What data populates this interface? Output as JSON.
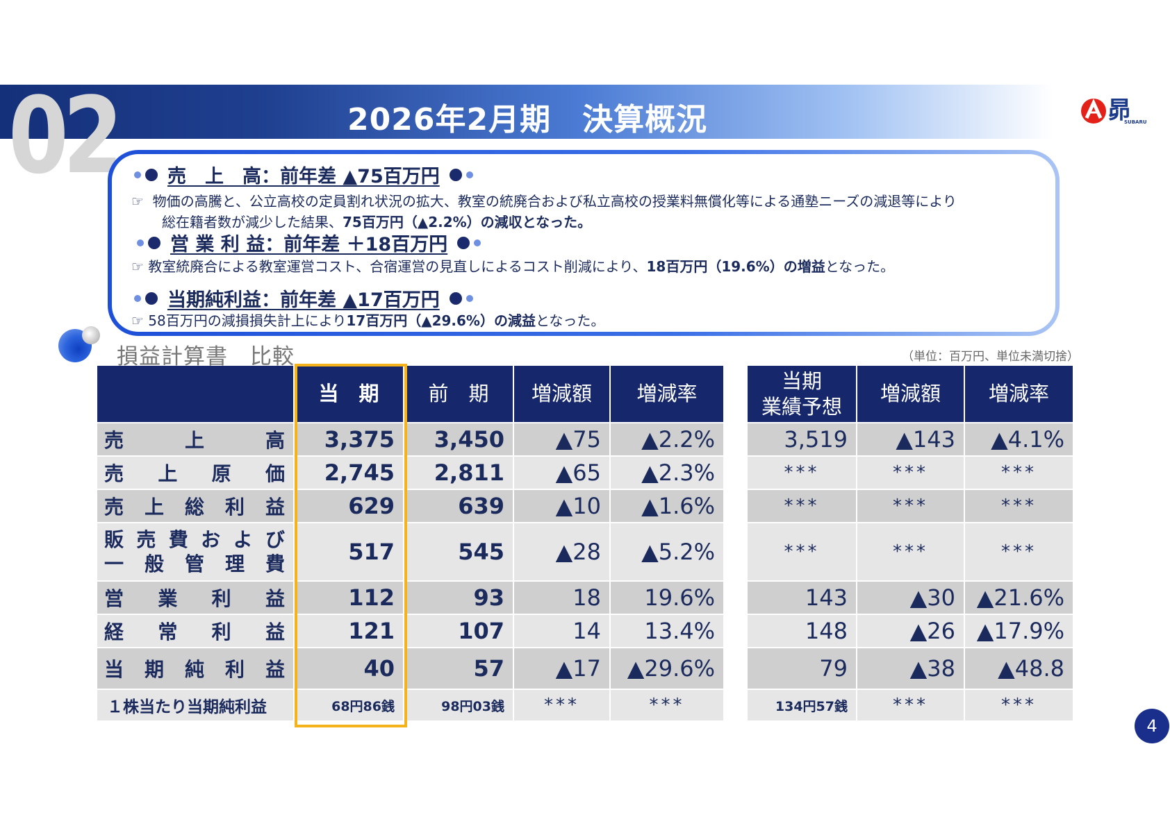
{
  "header": {
    "section_number": "02",
    "title": "2026年2月期　決算概況",
    "logo_text": "SUBARU"
  },
  "summary": {
    "sales": {
      "heading": "売　上　高：前年差 ▲75百万円",
      "line1": "物価の高騰と、公立高校の定員割れ状況の拡大、教室の統廃合および私立高校の授業料無償化等による通塾ニーズの減退等により",
      "line2_pre": "総在籍者数が減少した結果、",
      "line2_bold": "75百万円（▲2.2%）の減収となった。"
    },
    "operating": {
      "heading": "営 業 利 益：前年差 ＋18百万円",
      "line1_pre": "教室統廃合による教室運営コスト、合宿運営の見直しによるコスト削減により、",
      "line1_bold1": "18百万円（19.6%）の増益",
      "line1_post": "となった。"
    },
    "net": {
      "heading": "当期純利益：前年差 ▲17百万円",
      "line1_pre": "58百万円の減損損失計上により",
      "line1_bold1": "17百万円（▲29.6%）の減益",
      "line1_post": "となった。"
    },
    "bullet_icon": "pointing-hand-icon"
  },
  "section": {
    "subheading": "損益計算書　比較",
    "unit_note": "（単位：百万円、単位未満切捨）"
  },
  "table_left": {
    "headers": [
      "",
      "当　期",
      "前　期",
      "増減額",
      "増減率"
    ],
    "rows": [
      {
        "label_chars": [
          "売",
          "上",
          "高"
        ],
        "current": "3,375",
        "previous": "3,450",
        "diff": "▲75",
        "rate": "▲2.2%"
      },
      {
        "label_chars": [
          "売",
          "上",
          "原",
          "価"
        ],
        "current": "2,745",
        "previous": "2,811",
        "diff": "▲65",
        "rate": "▲2.3%"
      },
      {
        "label_chars": [
          "売",
          "上",
          "総",
          "利",
          "益"
        ],
        "current": "629",
        "previous": "639",
        "diff": "▲10",
        "rate": "▲1.6%"
      },
      {
        "label_chars_line1": [
          "販",
          "売",
          "費",
          "お",
          "よ",
          "び"
        ],
        "label_chars_line2": [
          "一",
          "般",
          "管",
          "理",
          "費"
        ],
        "current": "517",
        "previous": "545",
        "diff": "▲28",
        "rate": "▲5.2%"
      },
      {
        "label_chars": [
          "営",
          "業",
          "利",
          "益"
        ],
        "current": "112",
        "previous": "93",
        "diff": "18",
        "rate": "19.6%"
      },
      {
        "label_chars": [
          "経",
          "常",
          "利",
          "益"
        ],
        "current": "121",
        "previous": "107",
        "diff": "14",
        "rate": "13.4%"
      },
      {
        "label_chars": [
          "当",
          "期",
          "純",
          "利",
          "益"
        ],
        "current": "40",
        "previous": "57",
        "diff": "▲17",
        "rate": "▲29.6%"
      },
      {
        "label": "１株当たり当期純利益",
        "current": "68円86銭",
        "previous": "98円03銭",
        "diff": "***",
        "rate": "***"
      }
    ]
  },
  "table_right": {
    "headers": [
      "当期",
      "業績予想",
      "増減額",
      "増減率"
    ],
    "rows": [
      {
        "forecast": "3,519",
        "diff": "▲143",
        "rate": "▲4.1%"
      },
      {
        "forecast": "***",
        "diff": "***",
        "rate": "***"
      },
      {
        "forecast": "***",
        "diff": "***",
        "rate": "***"
      },
      {
        "forecast": "***",
        "diff": "***",
        "rate": "***"
      },
      {
        "forecast": "143",
        "diff": "▲30",
        "rate": "▲21.6%"
      },
      {
        "forecast": "148",
        "diff": "▲26",
        "rate": "▲17.9%"
      },
      {
        "forecast": "79",
        "diff": "▲38",
        "rate": "▲48.8"
      },
      {
        "forecast": "134円57銭",
        "diff": "***",
        "rate": "***"
      }
    ]
  },
  "page_number": "4",
  "colors": {
    "navy": "#16286b",
    "highlight": "#f4b31a",
    "row_dark": "#cfcfcf",
    "row_light": "#e6e6e6"
  }
}
